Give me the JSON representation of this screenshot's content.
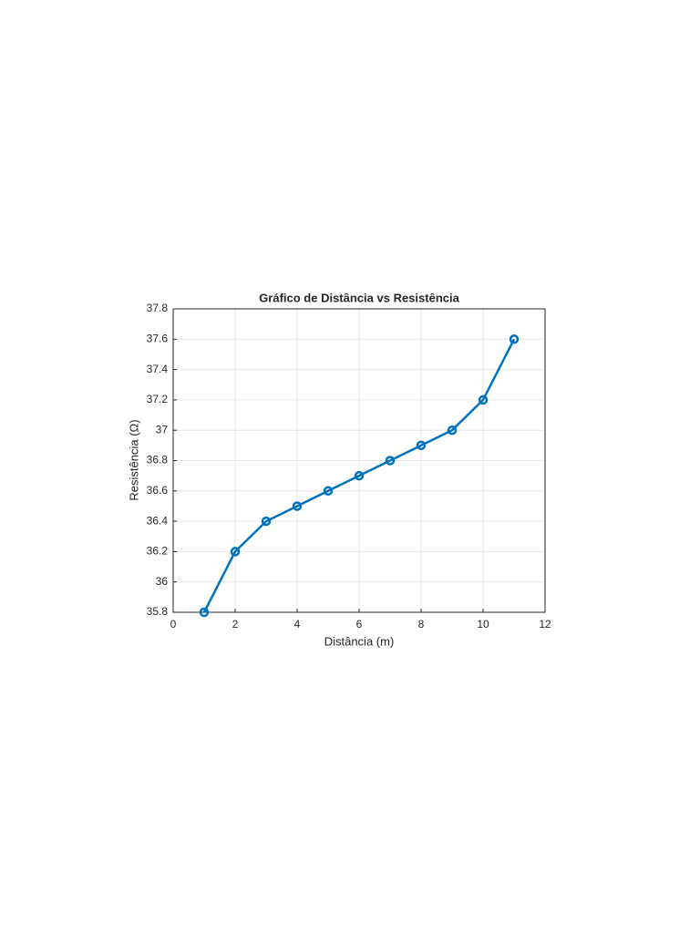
{
  "chart_data": {
    "type": "line",
    "title": "Gráfico de Distância vs Resistência",
    "x_label": "Distância (m)",
    "y_label": "Resistência (Ω)",
    "x": [
      1,
      2,
      3,
      4,
      5,
      6,
      7,
      8,
      9,
      10,
      11
    ],
    "series": [
      {
        "name": "Resistência",
        "color": "#0072bd",
        "values": [
          35.8,
          36.2,
          36.4,
          36.5,
          36.6,
          36.7,
          36.8,
          36.9,
          37.0,
          37.2,
          37.6
        ]
      }
    ],
    "xlim": [
      0,
      12
    ],
    "xticks": [
      0,
      2,
      4,
      6,
      8,
      10,
      12
    ],
    "ylim": [
      35.8,
      37.8
    ],
    "yticks": [
      35.8,
      36,
      36.2,
      36.4,
      36.6,
      36.8,
      37,
      37.2,
      37.4,
      37.6,
      37.8
    ],
    "grid": true,
    "marker": "circle"
  }
}
